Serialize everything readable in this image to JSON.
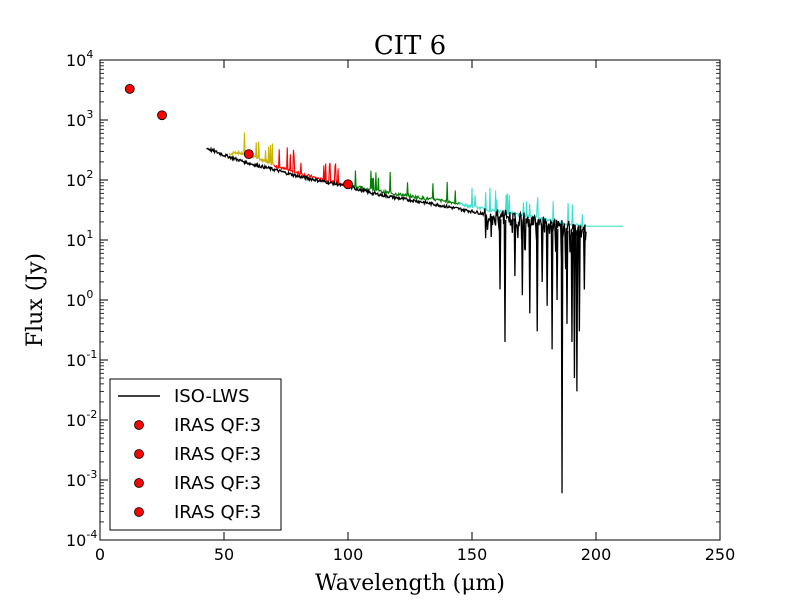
{
  "chart_data": {
    "type": "line",
    "title": "CIT 6",
    "xlabel": "Wavelength (μm)",
    "ylabel": "Flux (Jy)",
    "xscale": "linear",
    "yscale": "log",
    "xlim": [
      0,
      250
    ],
    "ylim": [
      0.0001,
      10000
    ],
    "x_ticks": [
      0,
      50,
      100,
      150,
      200,
      250
    ],
    "x_tick_labels": [
      "0",
      "50",
      "100",
      "150",
      "200",
      "250"
    ],
    "y_ticks": [
      0.0001,
      0.001,
      0.01,
      0.1,
      1,
      10,
      100,
      1000,
      10000
    ],
    "y_tick_bases": [
      "10",
      "10",
      "10",
      "10",
      "10",
      "10",
      "10",
      "10",
      "10"
    ],
    "y_tick_exponents": [
      "-4",
      "-3",
      "-2",
      "-1",
      "0",
      "1",
      "2",
      "3",
      "4"
    ],
    "legend_position": "lower-left",
    "series": [
      {
        "name": "ISO-LWS",
        "kind": "line",
        "color": "#000000",
        "x": [
          43,
          50,
          60,
          70,
          80,
          90,
          100,
          110,
          120,
          130,
          140,
          150,
          160,
          170,
          175,
          180,
          185,
          190,
          195,
          196
        ],
        "y": [
          340,
          260,
          190,
          150,
          115,
          95,
          78,
          60,
          50,
          43,
          36,
          30,
          25,
          22,
          20,
          18,
          17,
          15,
          14,
          14
        ],
        "dips": [
          {
            "x": 161,
            "y": 1.5
          },
          {
            "x": 163,
            "y": 0.2
          },
          {
            "x": 167,
            "y": 2.5
          },
          {
            "x": 170,
            "y": 1.2
          },
          {
            "x": 173,
            "y": 0.6
          },
          {
            "x": 176,
            "y": 0.3
          },
          {
            "x": 178,
            "y": 2.0
          },
          {
            "x": 180,
            "y": 0.8
          },
          {
            "x": 182,
            "y": 0.15
          },
          {
            "x": 184,
            "y": 1.0
          },
          {
            "x": 186,
            "y": 0.0006
          },
          {
            "x": 188,
            "y": 0.4
          },
          {
            "x": 190,
            "y": 0.2
          },
          {
            "x": 191,
            "y": 0.05
          },
          {
            "x": 192,
            "y": 0.03
          },
          {
            "x": 193,
            "y": 0.3
          },
          {
            "x": 195,
            "y": 1.5
          }
        ]
      },
      {
        "name": "",
        "kind": "line",
        "color": "#c8b400",
        "x": [
          52,
          55,
          60,
          65,
          70
        ],
        "y": [
          270,
          290,
          260,
          220,
          185
        ]
      },
      {
        "name": "",
        "kind": "line",
        "color": "#ff0000",
        "x": [
          70,
          75,
          80,
          85,
          90,
          95,
          100
        ],
        "y": [
          175,
          150,
          130,
          115,
          100,
          90,
          82
        ]
      },
      {
        "name": "",
        "kind": "line",
        "color": "#008000",
        "x": [
          100,
          110,
          120,
          130,
          140,
          145
        ],
        "y": [
          82,
          68,
          58,
          50,
          44,
          40
        ]
      },
      {
        "name": "",
        "kind": "line",
        "color": "#40e0d0",
        "x": [
          145,
          150,
          160,
          170,
          180,
          190,
          195,
          200,
          205,
          211
        ],
        "y": [
          40,
          36,
          30,
          26,
          22,
          18,
          17,
          17,
          17,
          17
        ]
      },
      {
        "name": "IRAS QF:3",
        "kind": "marker",
        "color": "#ff0000",
        "x": [
          12
        ],
        "y": [
          3300
        ]
      },
      {
        "name": "IRAS QF:3",
        "kind": "marker",
        "color": "#ff0000",
        "x": [
          25
        ],
        "y": [
          1200
        ]
      },
      {
        "name": "IRAS QF:3",
        "kind": "marker",
        "color": "#ff0000",
        "x": [
          60
        ],
        "y": [
          270
        ]
      },
      {
        "name": "IRAS QF:3",
        "kind": "marker",
        "color": "#ff0000",
        "x": [
          100
        ],
        "y": [
          85
        ]
      }
    ],
    "legend": [
      {
        "label": "ISO-LWS",
        "kind": "line",
        "color": "#000000"
      },
      {
        "label": "IRAS QF:3",
        "kind": "marker",
        "color": "#ff0000"
      },
      {
        "label": "IRAS QF:3",
        "kind": "marker",
        "color": "#ff0000"
      },
      {
        "label": "IRAS QF:3",
        "kind": "marker",
        "color": "#ff0000"
      },
      {
        "label": "IRAS QF:3",
        "kind": "marker",
        "color": "#ff0000"
      }
    ]
  }
}
